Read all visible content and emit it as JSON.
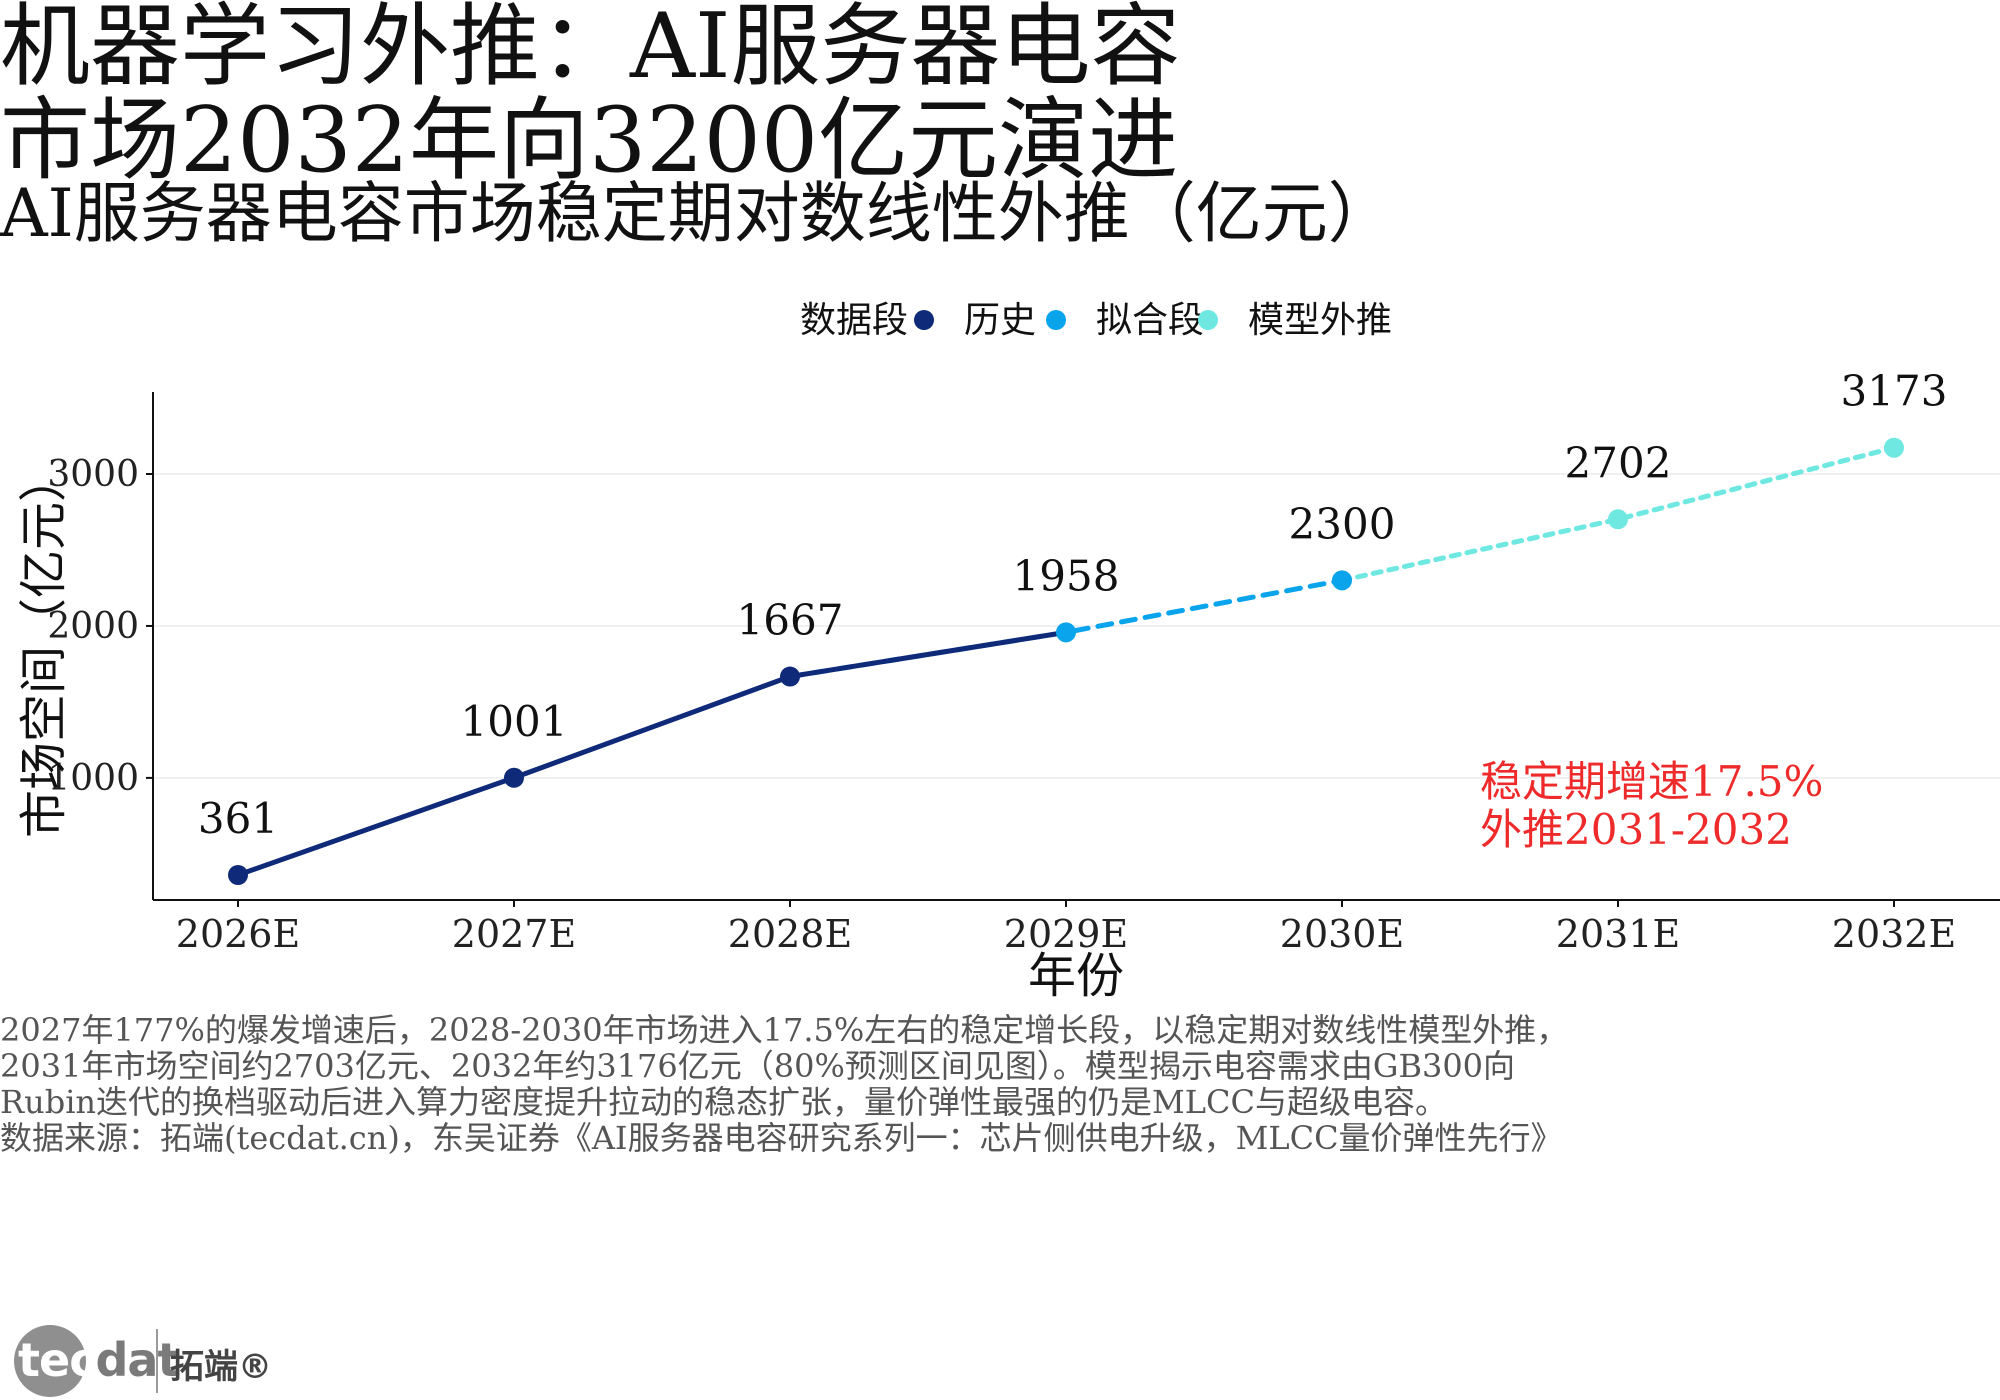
{
  "title_line1": "机器学习外推：AI服务器电容",
  "title_line2": "市场2032年向3200亿元演进",
  "subtitle": "AI服务器电容市场稳定期对数线性外推（亿元）",
  "chart_data": {
    "type": "line",
    "categories": [
      "2026E",
      "2027E",
      "2028E",
      "2029E",
      "2030E",
      "2031E",
      "2032E"
    ],
    "xlabel": "年份",
    "ylabel": "市场空间（亿元）",
    "y_ticks": [
      1000,
      2000,
      3000
    ],
    "ylim": [
      250,
      3300
    ],
    "grid": "horizontal",
    "legend": {
      "title": "数据段",
      "placement": "top",
      "entries": [
        {
          "label": "历史",
          "color": "#0f2a78"
        },
        {
          "label": "拟合段",
          "color": "#0aa4ec"
        },
        {
          "label": "模型外推",
          "color": "#6fe8e2"
        }
      ]
    },
    "series": [
      {
        "name": "历史",
        "color": "#0f2a78",
        "style": "solid",
        "x": [
          "2026E",
          "2027E",
          "2028E",
          "2029E"
        ],
        "values": [
          361,
          1001,
          1667,
          1958
        ]
      },
      {
        "name": "拟合段",
        "color": "#0aa4ec",
        "style": "dashed",
        "x": [
          "2028E",
          "2029E",
          "2030E"
        ],
        "values": [
          1667,
          1958,
          2300
        ]
      },
      {
        "name": "模型外推",
        "color": "#6fe8e2",
        "style": "dotted",
        "x": [
          "2030E",
          "2031E",
          "2032E"
        ],
        "values": [
          2300,
          2702,
          3173
        ]
      }
    ],
    "points": [
      {
        "x": "2026E",
        "value": 361,
        "label": "361",
        "segment": "历史"
      },
      {
        "x": "2027E",
        "value": 1001,
        "label": "1001",
        "segment": "历史"
      },
      {
        "x": "2028E",
        "value": 1667,
        "label": "1667",
        "segment": "历史"
      },
      {
        "x": "2029E",
        "value": 1958,
        "label": "1958",
        "segment": "拟合段"
      },
      {
        "x": "2030E",
        "value": 2300,
        "label": "2300",
        "segment": "拟合段"
      },
      {
        "x": "2031E",
        "value": 2702,
        "label": "2702",
        "segment": "模型外推"
      },
      {
        "x": "2032E",
        "value": 3173,
        "label": "3173",
        "segment": "模型外推"
      }
    ],
    "annotation": {
      "lines": [
        "稳定期增速17.5%",
        "外推2031-2032"
      ],
      "color": "#ee2a2a"
    }
  },
  "notes": [
    "2027年177%的爆发增速后，2028-2030年市场进入17.5%左右的稳定增长段，以稳定期对数线性模型外推，",
    "2031年市场空间约2703亿元、2032年约3176亿元（80%预测区间见图）。模型揭示电容需求由GB300向",
    "Rubin迭代的换档驱动后进入算力密度提升拉动的稳态扩张，量价弹性最强的仍是MLCC与超级电容。",
    "数据来源：拓端(tecdat.cn)，东吴证券《AI服务器电容研究系列一：芯片侧供电升级，MLCC量价弹性先行》"
  ],
  "logo": {
    "word_light": "tec",
    "word_dark": "dat",
    "cn": "拓端®"
  }
}
